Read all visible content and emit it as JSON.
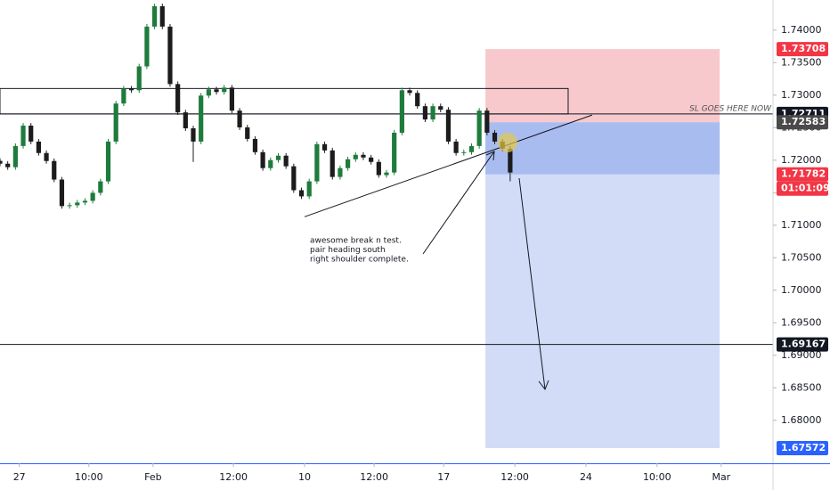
{
  "chart_data": {
    "type": "candlestick",
    "xlim": [
      0,
      100
    ],
    "ylim": [
      1.67339,
      1.74463
    ],
    "grid": false,
    "up_color": "#1e7b3c",
    "down_color": "#1c1c1c",
    "xticks": [
      {
        "value": 2.5,
        "label": "27"
      },
      {
        "value": 11.5,
        "label": "10:00"
      },
      {
        "value": 19.8,
        "label": "Feb"
      },
      {
        "value": 30.2,
        "label": "12:00"
      },
      {
        "value": 39.4,
        "label": "10"
      },
      {
        "value": 48.4,
        "label": "12:00"
      },
      {
        "value": 57.4,
        "label": "17"
      },
      {
        "value": 66.6,
        "label": "12:00"
      },
      {
        "value": 75.8,
        "label": "24"
      },
      {
        "value": 85,
        "label": "10:00"
      },
      {
        "value": 93.3,
        "label": "Mar"
      }
    ],
    "yticks": [
      {
        "value": 1.74,
        "label": "1.74000"
      },
      {
        "value": 1.735,
        "label": "1.73500"
      },
      {
        "value": 1.73,
        "label": "1.73000"
      },
      {
        "value": 1.725,
        "label": "1.72500"
      },
      {
        "value": 1.72,
        "label": "1.72000"
      },
      {
        "value": 1.715,
        "label": "1.71500"
      },
      {
        "value": 1.71,
        "label": "1.71000"
      },
      {
        "value": 1.705,
        "label": "1.70500"
      },
      {
        "value": 1.7,
        "label": "1.70000"
      },
      {
        "value": 1.695,
        "label": "1.69500"
      },
      {
        "value": 1.69,
        "label": "1.69000"
      },
      {
        "value": 1.685,
        "label": "1.68500"
      },
      {
        "value": 1.68,
        "label": "1.68000"
      }
    ],
    "open": [
      1.7199,
      1.71946,
      1.71892,
      1.72218,
      1.72531,
      1.72286,
      1.7211,
      1.71987,
      1.71702,
      1.71294,
      1.71307,
      1.71348,
      1.71375,
      1.71498,
      1.71674,
      1.72286,
      1.72871,
      1.73102,
      1.73075,
      1.73442,
      1.74054,
      1.74367,
      1.74054,
      1.7317,
      1.72735,
      1.7249,
      1.72286,
      1.72993,
      1.73089,
      1.73048,
      1.73116,
      1.72762,
      1.72504,
      1.72327,
      1.72123,
      1.71878,
      1.72001,
      1.72069,
      1.71906,
      1.71538,
      1.71443,
      1.71674,
      1.72246,
      1.7215,
      1.71742,
      1.71878,
      1.72014,
      1.72082,
      1.72041,
      1.71973,
      1.7177,
      1.7181,
      1.72422,
      1.73075,
      1.73034,
      1.7283,
      1.72626,
      1.7283,
      1.72776,
      1.72286,
      1.7211,
      1.72123,
      1.72218,
      1.72762,
      1.72422,
      1.72286,
      1.72177
    ],
    "high": [
      1.7203,
      1.71986,
      1.72258,
      1.72571,
      1.72571,
      1.72326,
      1.7215,
      1.72027,
      1.71742,
      1.71347,
      1.71388,
      1.71415,
      1.71538,
      1.71714,
      1.72326,
      1.72911,
      1.73142,
      1.73142,
      1.73482,
      1.74094,
      1.74407,
      1.74407,
      1.74094,
      1.7321,
      1.72775,
      1.7253,
      1.73033,
      1.73129,
      1.73129,
      1.73156,
      1.73156,
      1.72802,
      1.72544,
      1.72367,
      1.72163,
      1.72041,
      1.72109,
      1.72109,
      1.71946,
      1.71578,
      1.71714,
      1.72286,
      1.72286,
      1.7219,
      1.71918,
      1.72054,
      1.72122,
      1.72122,
      1.72081,
      1.72013,
      1.7185,
      1.72462,
      1.73115,
      1.73115,
      1.73074,
      1.7287,
      1.7287,
      1.7287,
      1.72816,
      1.72326,
      1.72163,
      1.72258,
      1.72802,
      1.72802,
      1.72462,
      1.72326,
      1.72217
    ],
    "low": [
      1.71906,
      1.71852,
      1.71852,
      1.72178,
      1.72246,
      1.7207,
      1.71947,
      1.71662,
      1.71254,
      1.71254,
      1.71267,
      1.71308,
      1.71335,
      1.71458,
      1.71634,
      1.72246,
      1.72831,
      1.73035,
      1.73035,
      1.73402,
      1.74014,
      1.74014,
      1.7313,
      1.72695,
      1.7245,
      1.71973,
      1.72246,
      1.72953,
      1.73008,
      1.73008,
      1.72722,
      1.72464,
      1.72287,
      1.72083,
      1.71838,
      1.71838,
      1.71961,
      1.71866,
      1.71498,
      1.71403,
      1.71403,
      1.71634,
      1.7211,
      1.71702,
      1.71702,
      1.71838,
      1.71974,
      1.72001,
      1.71933,
      1.7173,
      1.7173,
      1.7177,
      1.72382,
      1.72994,
      1.7279,
      1.72586,
      1.72586,
      1.72736,
      1.72246,
      1.7207,
      1.7207,
      1.72083,
      1.72178,
      1.72382,
      1.72246,
      1.72137,
      1.71674
    ],
    "close": [
      1.71946,
      1.71892,
      1.72218,
      1.72531,
      1.72286,
      1.7211,
      1.71987,
      1.71702,
      1.71294,
      1.71307,
      1.71348,
      1.71375,
      1.71498,
      1.71674,
      1.72286,
      1.72871,
      1.73102,
      1.73075,
      1.73442,
      1.74054,
      1.74367,
      1.74054,
      1.7317,
      1.72735,
      1.7249,
      1.72286,
      1.72993,
      1.73089,
      1.73048,
      1.73116,
      1.72762,
      1.72504,
      1.72327,
      1.72123,
      1.71878,
      1.72001,
      1.72069,
      1.71906,
      1.71538,
      1.71443,
      1.71674,
      1.72246,
      1.7215,
      1.71742,
      1.71878,
      1.72014,
      1.72082,
      1.72041,
      1.71973,
      1.7177,
      1.7181,
      1.72422,
      1.73075,
      1.73034,
      1.7283,
      1.72626,
      1.7283,
      1.72776,
      1.72286,
      1.7211,
      1.72123,
      1.72218,
      1.72762,
      1.72422,
      1.72286,
      1.72177,
      1.7181
    ],
    "levels": [
      1.72711,
      1.69167
    ],
    "box": {
      "x": [
        0,
        73.5
      ],
      "y": [
        1.73102,
        1.72711
      ]
    },
    "position": {
      "x": [
        62.8,
        93.1
      ],
      "stop": 1.73708,
      "entry": 1.72583,
      "current": 1.71782,
      "target": 1.67572
    },
    "trendline": {
      "x": [
        39.4,
        76.6
      ],
      "y": [
        1.7113,
        1.72694
      ]
    },
    "price_labels": [
      {
        "value": 1.73708,
        "label": "1.73708",
        "color": "#f23645"
      },
      {
        "value": 1.72711,
        "label": "1.72711",
        "color": "#131722"
      },
      {
        "value": 1.72583,
        "label": "1.72583",
        "color": "#4a4a4a"
      },
      {
        "value": 1.71782,
        "label": "1.71782",
        "color": "#f23645"
      },
      {
        "value": 1.69167,
        "label": "1.69167",
        "color": "#131722"
      },
      {
        "value": 1.67572,
        "label": "1.67572",
        "color": "#2962ff"
      }
    ],
    "countdown": "01:01:09",
    "sl_note": "SL GOES HERE NOW",
    "annotation": [
      "awesome break n test.",
      "pair heading south",
      "right shoulder complete."
    ]
  }
}
